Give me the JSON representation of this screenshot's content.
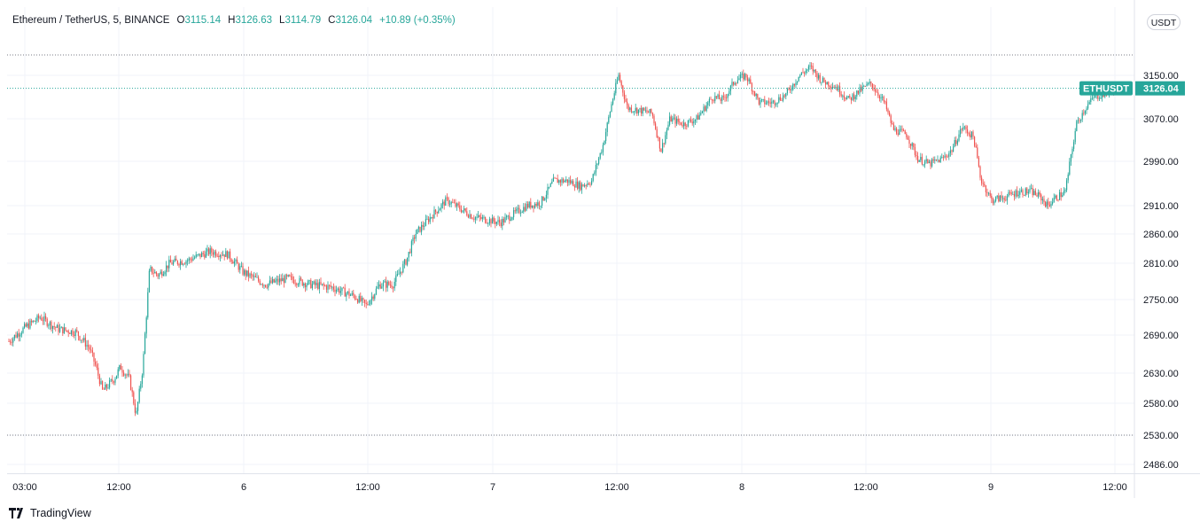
{
  "legend": {
    "symbol": "Ethereum / TetherUS, 5, BINANCE",
    "open_label": "O",
    "open": "3115.14",
    "high_label": "H",
    "high": "3126.63",
    "low_label": "L",
    "low": "3114.79",
    "close_label": "C",
    "close": "3126.04",
    "change": "+10.89 (+0.35%)"
  },
  "currency_button": "USDT",
  "price_tag": {
    "ticker": "ETHUSDT",
    "price": "3126.04"
  },
  "brand": {
    "name": "TradingView",
    "icon": "tradingview-logo-icon"
  },
  "colors": {
    "up": "#26a69a",
    "down": "#ef5350",
    "grid": "#f0f3fa",
    "axis": "#e0e3eb"
  },
  "chart_data": {
    "type": "candlestick",
    "symbol": "ETHUSDT",
    "exchange": "BINANCE",
    "interval": "5",
    "y_ticks": [
      3150,
      3070,
      2990,
      2910,
      2860,
      2810,
      2750,
      2690,
      2630,
      2580,
      2530,
      2486
    ],
    "y_tick_labels": [
      "3150.00",
      "3070.00",
      "2990.00",
      "2910.00",
      "2860.00",
      "2810.00",
      "2750.00",
      "2690.00",
      "2630.00",
      "2580.00",
      "2530.00",
      "2486.00"
    ],
    "x_ticks": [
      "03:00",
      "12:00",
      "6",
      "12:00",
      "7",
      "12:00",
      "8",
      "12:00",
      "9",
      "12:00"
    ],
    "high_line": 3175,
    "low_line": 2530,
    "last_price": 3126.04,
    "grid": true,
    "price_path": [
      {
        "x": 0,
        "y": 2680
      },
      {
        "x": 8,
        "y": 2705
      },
      {
        "x": 14,
        "y": 2720
      },
      {
        "x": 22,
        "y": 2700
      },
      {
        "x": 30,
        "y": 2695
      },
      {
        "x": 36,
        "y": 2670
      },
      {
        "x": 39,
        "y": 2640
      },
      {
        "x": 42,
        "y": 2600
      },
      {
        "x": 47,
        "y": 2620
      },
      {
        "x": 50,
        "y": 2640
      },
      {
        "x": 54,
        "y": 2620
      },
      {
        "x": 57,
        "y": 2560
      },
      {
        "x": 60,
        "y": 2640
      },
      {
        "x": 63,
        "y": 2800
      },
      {
        "x": 67,
        "y": 2790
      },
      {
        "x": 72,
        "y": 2810
      },
      {
        "x": 80,
        "y": 2815
      },
      {
        "x": 90,
        "y": 2830
      },
      {
        "x": 98,
        "y": 2825
      },
      {
        "x": 105,
        "y": 2795
      },
      {
        "x": 115,
        "y": 2775
      },
      {
        "x": 125,
        "y": 2785
      },
      {
        "x": 135,
        "y": 2775
      },
      {
        "x": 145,
        "y": 2770
      },
      {
        "x": 155,
        "y": 2755
      },
      {
        "x": 160,
        "y": 2740
      },
      {
        "x": 166,
        "y": 2775
      },
      {
        "x": 172,
        "y": 2775
      },
      {
        "x": 178,
        "y": 2815
      },
      {
        "x": 182,
        "y": 2860
      },
      {
        "x": 190,
        "y": 2895
      },
      {
        "x": 196,
        "y": 2920
      },
      {
        "x": 202,
        "y": 2905
      },
      {
        "x": 208,
        "y": 2890
      },
      {
        "x": 214,
        "y": 2885
      },
      {
        "x": 220,
        "y": 2880
      },
      {
        "x": 226,
        "y": 2895
      },
      {
        "x": 232,
        "y": 2910
      },
      {
        "x": 238,
        "y": 2915
      },
      {
        "x": 244,
        "y": 2955
      },
      {
        "x": 250,
        "y": 2955
      },
      {
        "x": 256,
        "y": 2945
      },
      {
        "x": 261,
        "y": 2955
      },
      {
        "x": 266,
        "y": 3020
      },
      {
        "x": 270,
        "y": 3100
      },
      {
        "x": 273,
        "y": 3150
      },
      {
        "x": 277,
        "y": 3090
      },
      {
        "x": 283,
        "y": 3085
      },
      {
        "x": 288,
        "y": 3080
      },
      {
        "x": 292,
        "y": 3010
      },
      {
        "x": 296,
        "y": 3070
      },
      {
        "x": 302,
        "y": 3060
      },
      {
        "x": 308,
        "y": 3070
      },
      {
        "x": 315,
        "y": 3110
      },
      {
        "x": 320,
        "y": 3105
      },
      {
        "x": 325,
        "y": 3140
      },
      {
        "x": 330,
        "y": 3150
      },
      {
        "x": 336,
        "y": 3100
      },
      {
        "x": 342,
        "y": 3100
      },
      {
        "x": 348,
        "y": 3115
      },
      {
        "x": 354,
        "y": 3150
      },
      {
        "x": 359,
        "y": 3165
      },
      {
        "x": 364,
        "y": 3140
      },
      {
        "x": 370,
        "y": 3130
      },
      {
        "x": 376,
        "y": 3105
      },
      {
        "x": 382,
        "y": 3125
      },
      {
        "x": 386,
        "y": 3135
      },
      {
        "x": 392,
        "y": 3100
      },
      {
        "x": 396,
        "y": 3050
      },
      {
        "x": 402,
        "y": 3040
      },
      {
        "x": 407,
        "y": 2995
      },
      {
        "x": 412,
        "y": 2985
      },
      {
        "x": 418,
        "y": 2995
      },
      {
        "x": 422,
        "y": 3010
      },
      {
        "x": 427,
        "y": 3055
      },
      {
        "x": 432,
        "y": 3035
      },
      {
        "x": 435,
        "y": 2960
      },
      {
        "x": 440,
        "y": 2920
      },
      {
        "x": 446,
        "y": 2925
      },
      {
        "x": 452,
        "y": 2935
      },
      {
        "x": 458,
        "y": 2935
      },
      {
        "x": 462,
        "y": 2925
      },
      {
        "x": 465,
        "y": 2910
      },
      {
        "x": 469,
        "y": 2925
      },
      {
        "x": 473,
        "y": 2935
      },
      {
        "x": 478,
        "y": 3060
      },
      {
        "x": 482,
        "y": 3090
      },
      {
        "x": 486,
        "y": 3110
      },
      {
        "x": 490,
        "y": 3115
      },
      {
        "x": 495,
        "y": 3126
      }
    ],
    "x_range": [
      0,
      500
    ]
  }
}
